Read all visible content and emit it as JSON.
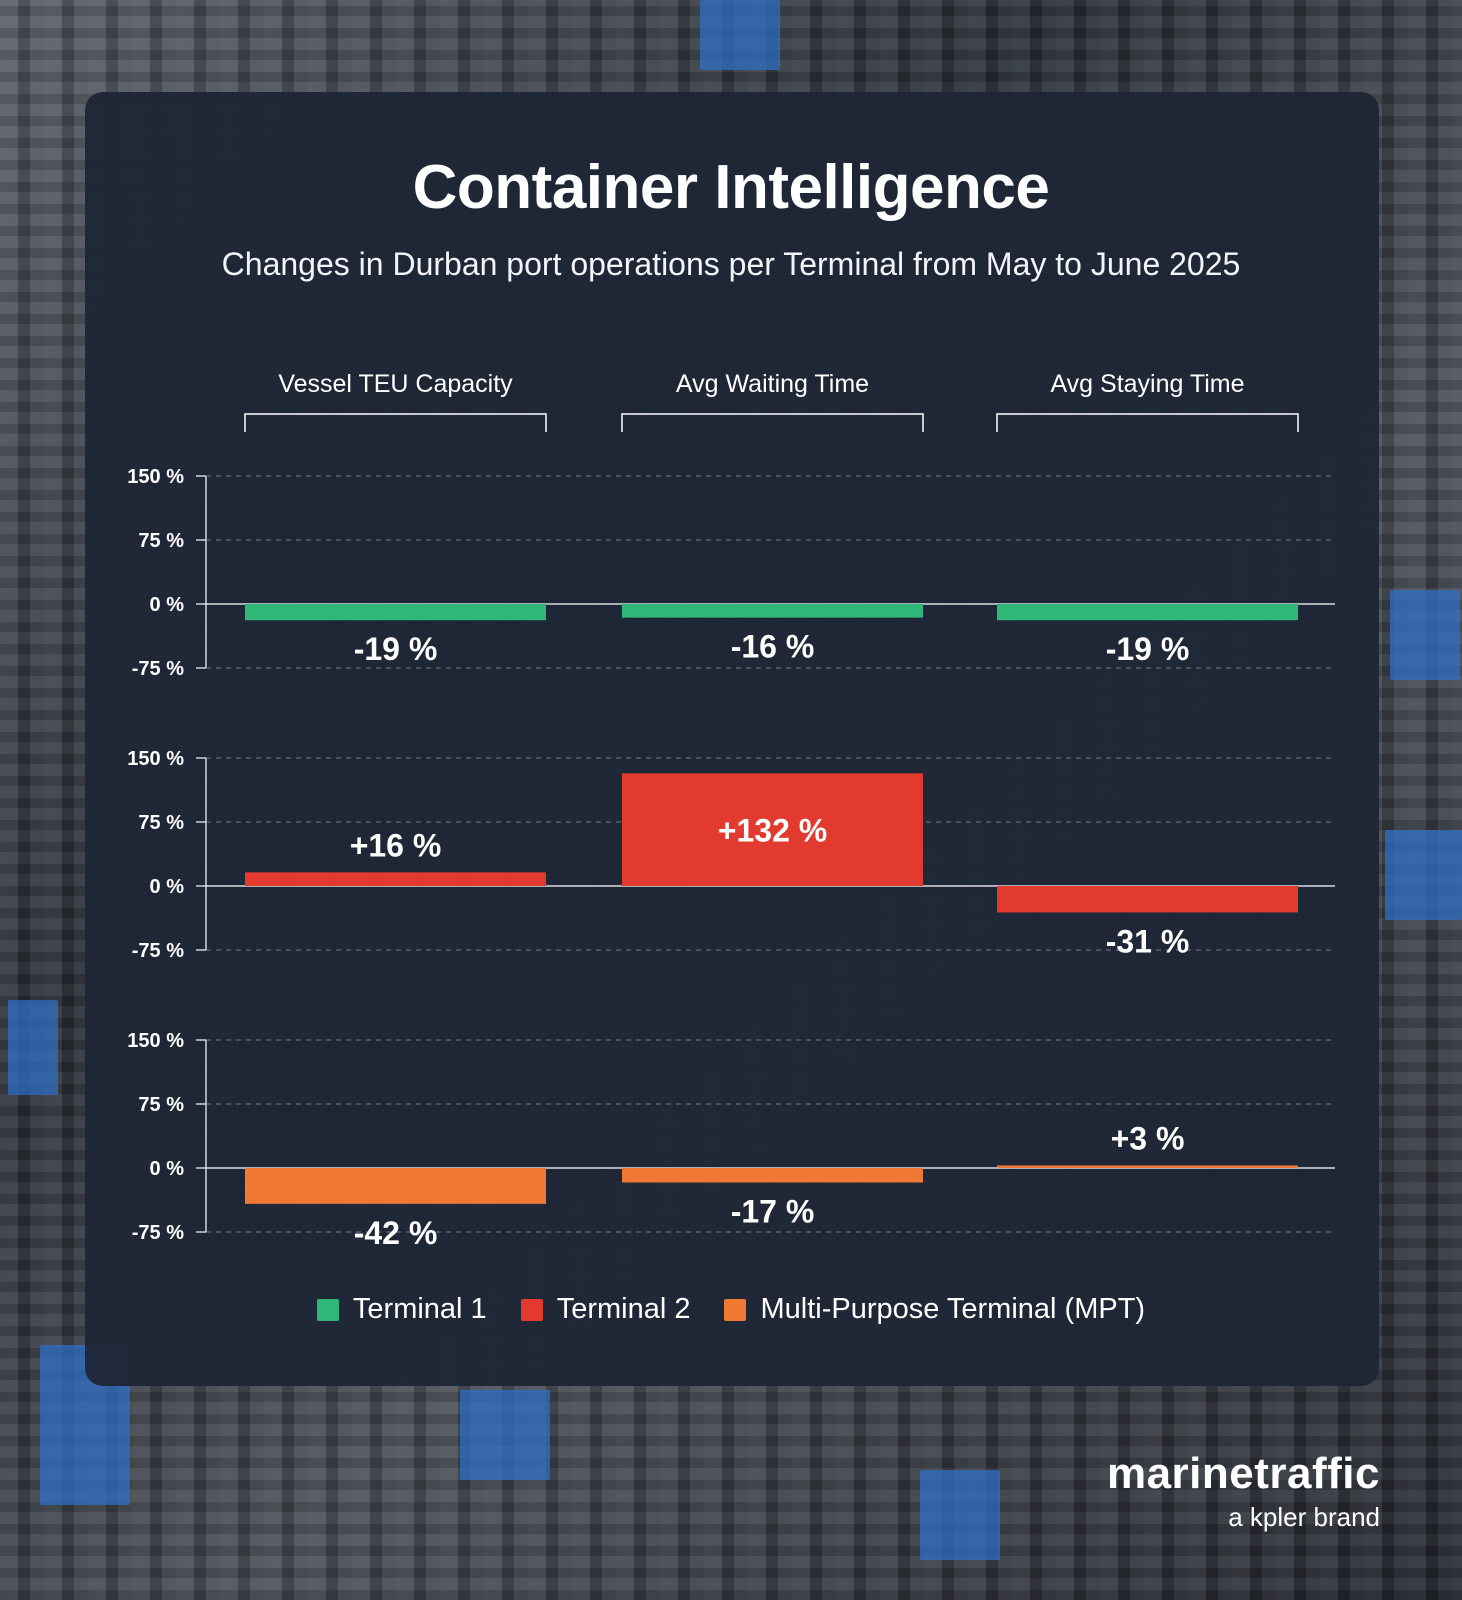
{
  "header": {
    "title": "Container Intelligence",
    "subtitle": "Changes in Durban port operations per Terminal from May to June 2025"
  },
  "chart_data": {
    "type": "bar",
    "categories": [
      "Vessel TEU Capacity",
      "Avg Waiting Time",
      "Avg Staying Time"
    ],
    "ylim": [
      -75,
      150
    ],
    "yticks": [
      150,
      75,
      0,
      -75
    ],
    "ytick_labels": [
      "150 %",
      "75 %",
      "0 %",
      "-75 %"
    ],
    "grid": true,
    "legend_position": "bottom",
    "series": [
      {
        "name": "Terminal 1",
        "color": "#2fb87a",
        "values": [
          -19,
          -16,
          -19
        ],
        "labels": [
          "-19 %",
          "-16 %",
          "-19 %"
        ]
      },
      {
        "name": "Terminal 2",
        "color": "#e23a2f",
        "values": [
          16,
          132,
          -31
        ],
        "labels": [
          "+16 %",
          "+132 %",
          "-31 %"
        ]
      },
      {
        "name": "Multi-Purpose Terminal (MPT)",
        "color": "#f07a35",
        "values": [
          -42,
          -17,
          3
        ],
        "labels": [
          "-42 %",
          "-17 %",
          "+3 %"
        ]
      }
    ]
  },
  "legend": {
    "items": [
      {
        "label": "Terminal 1",
        "color": "#2fb87a"
      },
      {
        "label": "Terminal 2",
        "color": "#e23a2f"
      },
      {
        "label": "Multi-Purpose Terminal (MPT)",
        "color": "#f07a35"
      }
    ]
  },
  "brand": {
    "name": "marinetraffic",
    "tagline": "a kpler brand"
  }
}
